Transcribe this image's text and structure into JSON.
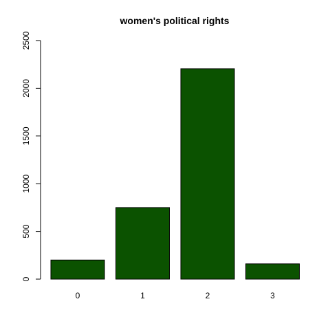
{
  "chart_data": {
    "type": "bar",
    "title": "women's political rights",
    "xlabel": "",
    "ylabel": "",
    "categories": [
      "0",
      "1",
      "2",
      "3"
    ],
    "values": [
      200,
      750,
      2205,
      160
    ],
    "ylim": [
      0,
      2500
    ],
    "yticks": [
      "0",
      "500",
      "1000",
      "1500",
      "2000",
      "2500"
    ],
    "grid": false,
    "legend": "none",
    "colors": {
      "bar": "#0b5200",
      "border": "#000000"
    }
  }
}
